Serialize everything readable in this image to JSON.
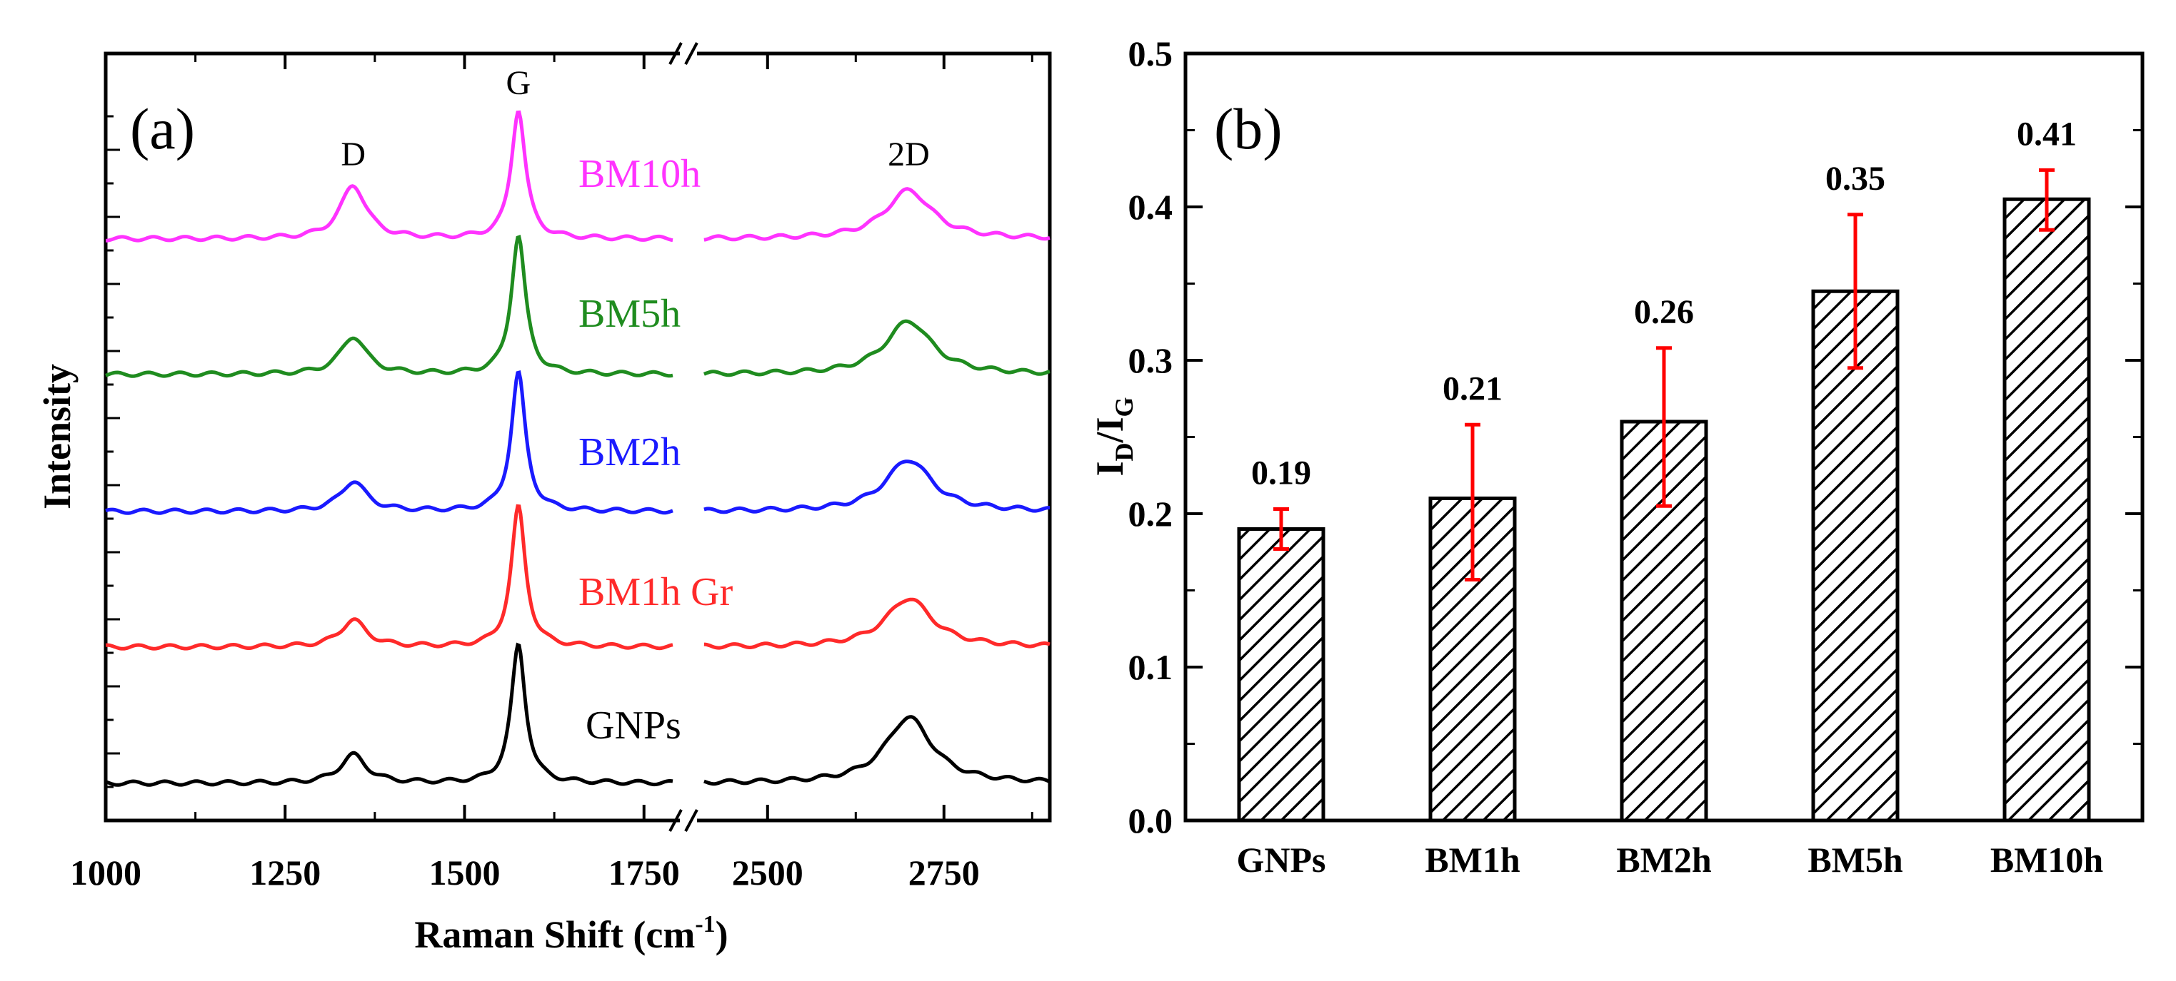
{
  "chart_data": [
    {
      "panel_label": "(a)",
      "type": "line",
      "xlabel_main": "Raman Shift (cm",
      "xlabel_sup": "-1",
      "xlabel_close": ")",
      "ylabel": "Intensity",
      "x_ticks_left": [
        "1000",
        "1250",
        "1500",
        "1750"
      ],
      "x_ticks_right": [
        "2500",
        "2750"
      ],
      "xlim_left": [
        1000,
        1800
      ],
      "xlim_right": [
        2400,
        2900
      ],
      "axis_break": true,
      "y_tick_labels": false,
      "peak_labels": [
        {
          "text": "D",
          "x": 1345
        },
        {
          "text": "G",
          "x": 1575
        },
        {
          "text": "2D",
          "x": 2700
        }
      ],
      "series": [
        {
          "name": "BM10h",
          "color": "#ff33ff",
          "D": 0.34,
          "G": 0.82,
          "twoD": 0.31
        },
        {
          "name": "BM5h",
          "color": "#1f8c1f",
          "D": 0.24,
          "G": 0.88,
          "twoD": 0.34
        },
        {
          "name": "BM2h",
          "color": "#1a1aff",
          "D": 0.19,
          "G": 0.88,
          "twoD": 0.33
        },
        {
          "name": "BM1h Gr",
          "color": "#ff2a2a",
          "D": 0.17,
          "G": 0.89,
          "twoD": 0.31
        },
        {
          "name": "GNPs",
          "color": "#000000",
          "D": 0.18,
          "G": 0.88,
          "twoD": 0.42
        }
      ]
    },
    {
      "panel_label": "(b)",
      "type": "bar",
      "ylabel_main": "I",
      "ylabel_sub1": "D",
      "ylabel_sep": "/I",
      "ylabel_sub2": "G",
      "ylim": [
        0,
        0.5
      ],
      "y_ticks": [
        "0.0",
        "0.1",
        "0.2",
        "0.3",
        "0.4",
        "0.5"
      ],
      "categories": [
        "GNPs",
        "BM1h",
        "BM2h",
        "BM5h",
        "BM10h"
      ],
      "values": [
        0.19,
        0.21,
        0.26,
        0.345,
        0.405
      ],
      "error_low": [
        0.177,
        0.157,
        0.205,
        0.295,
        0.385
      ],
      "error_high": [
        0.203,
        0.258,
        0.308,
        0.395,
        0.424
      ],
      "value_labels": [
        "0.19",
        "0.21",
        "0.26",
        "0.35",
        "0.41"
      ],
      "bar_pattern": "hatched",
      "error_color": "#ff0000"
    }
  ]
}
